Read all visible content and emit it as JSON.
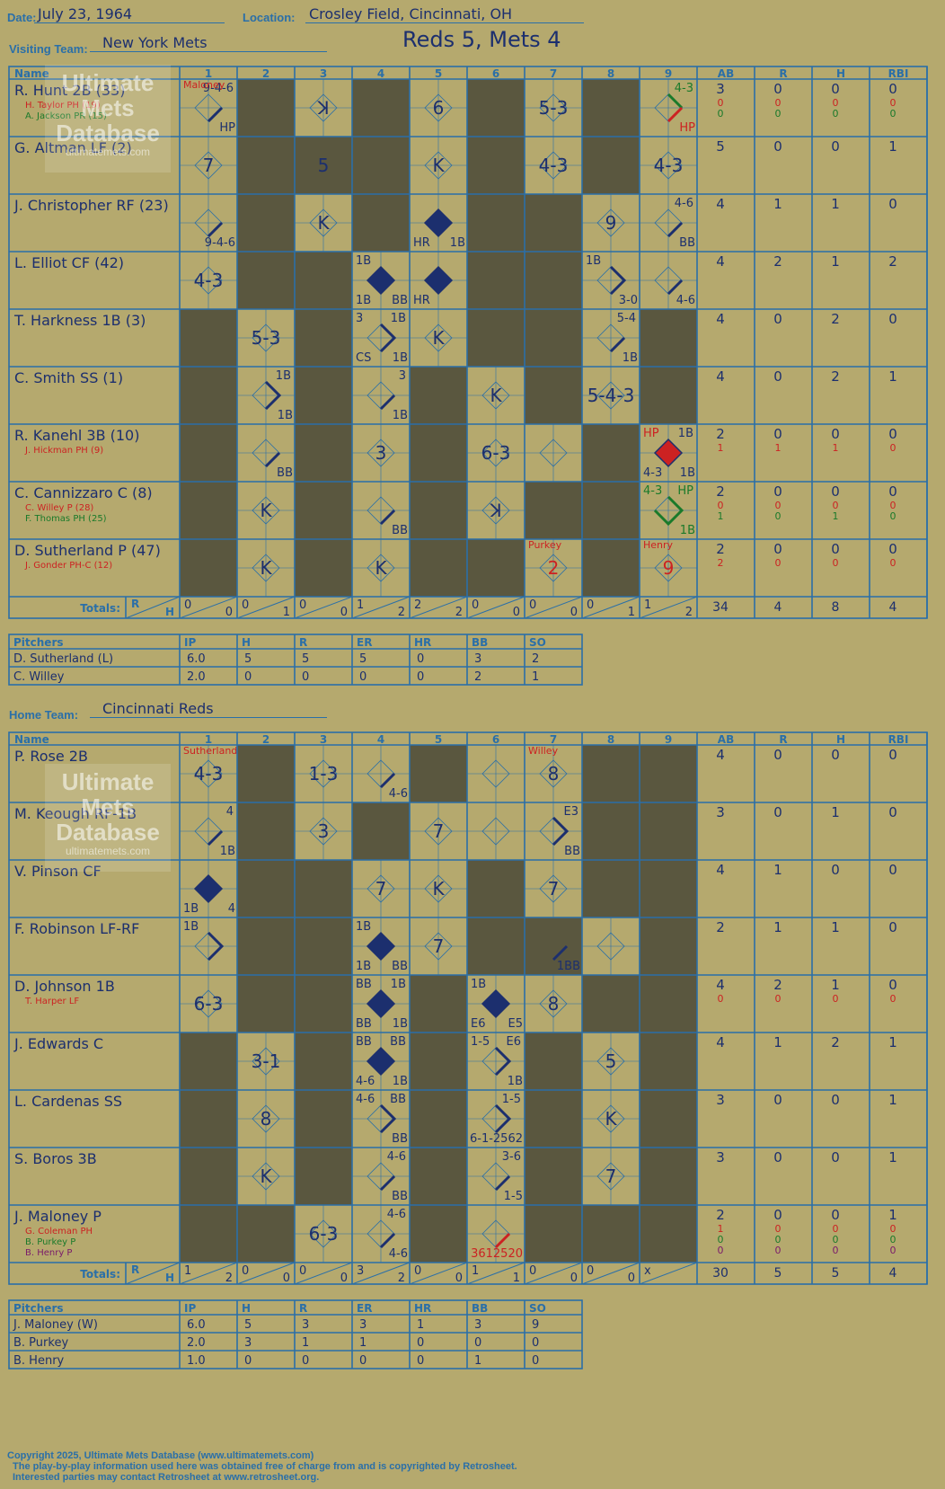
{
  "header": {
    "date_label": "Date:",
    "date": "July 23, 1964",
    "location_label": "Location:",
    "location": "Crosley Field, Cincinnati, OH",
    "final_score": "Reds 5, Mets 4"
  },
  "logo": {
    "line1": "Ultimate",
    "line2": "Mets",
    "line3": "Database",
    "line4": "ultimatemets.com"
  },
  "colors": {
    "background": "#b5a96e",
    "grid": "#2a6fa8",
    "ink": "#1c2f6e",
    "shade": "#5a573f",
    "red": "#cc2222",
    "green": "#1a7a2a",
    "purple": "#7a1a6a"
  },
  "columns": {
    "name": "Name",
    "innings": [
      "1",
      "2",
      "3",
      "4",
      "5",
      "6",
      "7",
      "8",
      "9"
    ],
    "stats": [
      "AB",
      "R",
      "H",
      "RBI"
    ]
  },
  "totals_label": "Totals:",
  "rh_labels": [
    "R",
    "H"
  ],
  "pitcher_columns": [
    "Pitchers",
    "IP",
    "H",
    "R",
    "ER",
    "HR",
    "BB",
    "SO"
  ],
  "visitor": {
    "team_label": "Visiting Team:",
    "team": "New York Mets",
    "batters": [
      {
        "name": "R. Hunt 2B (33)",
        "subs": [
          {
            "text": "H. Taylor PH (19)",
            "color": "red"
          },
          {
            "text": "A. Jackson PR (15)",
            "color": "green"
          }
        ],
        "stats": [
          "3",
          "0",
          "0",
          "0"
        ],
        "substats": [
          [
            "0",
            "0",
            "0",
            "0"
          ],
          [
            "0",
            "0",
            "0",
            "0"
          ]
        ],
        "subcolors": [
          "red",
          "green"
        ]
      },
      {
        "name": "G. Altman LF (2)",
        "subs": [],
        "stats": [
          "5",
          "0",
          "0",
          "1"
        ],
        "substats": [],
        "subcolors": []
      },
      {
        "name": "J. Christopher RF (23)",
        "subs": [],
        "stats": [
          "4",
          "1",
          "1",
          "0"
        ],
        "substats": [],
        "subcolors": []
      },
      {
        "name": "L. Elliot CF (42)",
        "subs": [],
        "stats": [
          "4",
          "2",
          "1",
          "2"
        ],
        "substats": [],
        "subcolors": []
      },
      {
        "name": "T. Harkness 1B (3)",
        "subs": [],
        "stats": [
          "4",
          "0",
          "2",
          "0"
        ],
        "substats": [],
        "subcolors": []
      },
      {
        "name": "C. Smith SS (1)",
        "subs": [],
        "stats": [
          "4",
          "0",
          "2",
          "1"
        ],
        "substats": [],
        "subcolors": []
      },
      {
        "name": "R. Kanehl 3B (10)",
        "subs": [
          {
            "text": "J. Hickman PH (9)",
            "color": "red"
          }
        ],
        "stats": [
          "2",
          "0",
          "0",
          "0"
        ],
        "substats": [
          [
            "1",
            "1",
            "1",
            "0"
          ]
        ],
        "subcolors": [
          "red"
        ]
      },
      {
        "name": "C. Cannizzaro C (8)",
        "subs": [
          {
            "text": "C. Willey P (28)",
            "color": "red"
          },
          {
            "text": "F. Thomas PH (25)",
            "color": "green"
          }
        ],
        "stats": [
          "2",
          "0",
          "0",
          "0"
        ],
        "substats": [
          [
            "0",
            "0",
            "0",
            "0"
          ],
          [
            "1",
            "0",
            "1",
            "0"
          ]
        ],
        "subcolors": [
          "red",
          "green"
        ]
      },
      {
        "name": "D. Sutherland P (47)",
        "subs": [
          {
            "text": "J. Gonder PH-C (12)",
            "color": "red"
          }
        ],
        "stats": [
          "2",
          "0",
          "0",
          "0"
        ],
        "substats": [
          [
            "2",
            "0",
            "0",
            "0"
          ]
        ],
        "subcolors": [
          "red"
        ]
      }
    ],
    "shaded": [
      [
        1,
        3,
        5,
        7
      ],
      [
        1,
        2,
        3,
        5,
        7
      ],
      [
        1,
        3,
        5,
        6
      ],
      [
        1,
        2,
        5,
        6
      ],
      [
        0,
        2,
        5,
        6,
        8
      ],
      [
        0,
        2,
        4,
        6,
        8
      ],
      [
        0,
        2,
        4,
        7
      ],
      [
        0,
        2,
        4,
        6,
        7
      ],
      [
        0,
        2,
        4,
        5,
        7
      ]
    ],
    "plays": [
      [
        {
          "i": 0,
          "t": "9-4-6",
          "p": "ur",
          "d": "1b-f",
          "b": "HP",
          "bp": "lr"
        },
        {
          "i": 2,
          "t": "ꓘ",
          "p": "c"
        },
        {
          "i": 4,
          "t": "6",
          "p": "c"
        },
        {
          "i": 6,
          "t": "5-3",
          "p": "c"
        },
        {
          "i": 8,
          "t": "4-3",
          "p": "ur",
          "c": "green",
          "d": "sc",
          "b": "HP",
          "bp": "lr",
          "bc": "red"
        }
      ],
      [
        {
          "i": 0,
          "t": "7",
          "p": "c"
        },
        {
          "i": 2,
          "t": "5",
          "p": "c"
        },
        {
          "i": 4,
          "t": "K",
          "p": "c"
        },
        {
          "i": 6,
          "t": "4-3",
          "p": "c"
        },
        {
          "i": 8,
          "t": "4-3",
          "p": "c"
        }
      ],
      [
        {
          "i": 0,
          "t": "9-4-6",
          "p": "lr",
          "d": "1b"
        },
        {
          "i": 2,
          "t": "K",
          "p": "c"
        },
        {
          "i": 4,
          "t": "HR",
          "p": "ll",
          "d": "run",
          "b": "1B",
          "bp": "lr"
        },
        {
          "i": 7,
          "t": "9",
          "p": "c"
        },
        {
          "i": 8,
          "t": "4-6",
          "p": "ur",
          "d": "1b",
          "b": "BB",
          "bp": "lr"
        }
      ],
      [
        {
          "i": 0,
          "t": "4-3",
          "p": "c"
        },
        {
          "i": 3,
          "t": "1B",
          "p": "ul",
          "d": "run",
          "b": "BB",
          "bp": "lr",
          "e": "1B",
          "ep": "ll"
        },
        {
          "i": 4,
          "t": "HR",
          "p": "ll",
          "d": "run"
        },
        {
          "i": 7,
          "t": "1B",
          "p": "ul",
          "d": "2b",
          "b": "3-0",
          "bp": "lr"
        },
        {
          "i": 8,
          "t": "4-6",
          "p": "lr",
          "d": "1b"
        }
      ],
      [
        {
          "i": 1,
          "t": "5-3",
          "p": "c"
        },
        {
          "i": 3,
          "t": "3",
          "p": "ul",
          "d": "2b",
          "b": "1B",
          "bp": "lr",
          "e": "CS",
          "ep": "ll",
          "f": "1B",
          "fp": "ur"
        },
        {
          "i": 4,
          "t": "K",
          "p": "c"
        },
        {
          "i": 7,
          "t": "5-4",
          "p": "ur",
          "d": "1b",
          "b": "1B",
          "bp": "lr"
        }
      ],
      [
        {
          "i": 1,
          "t": "1B",
          "p": "ur",
          "d": "2b",
          "b": "1B",
          "bp": "lr"
        },
        {
          "i": 3,
          "t": "3",
          "p": "ur",
          "d": "1b",
          "b": "1B",
          "bp": "lr"
        },
        {
          "i": 5,
          "t": "K",
          "p": "c"
        },
        {
          "i": 7,
          "t": "5-4-3",
          "p": "c"
        }
      ],
      [
        {
          "i": 1,
          "t": "BB",
          "p": "lr",
          "d": "1b"
        },
        {
          "i": 3,
          "t": "3",
          "p": "c"
        },
        {
          "i": 5,
          "t": "6-3",
          "p": "c"
        },
        {
          "i": 8,
          "t": "HP",
          "p": "ul",
          "c": "red",
          "d": "redrun",
          "b": "1B",
          "bp": "ur",
          "e": "4-3",
          "ep": "ll",
          "f": "1B",
          "fp": "lr"
        }
      ],
      [
        {
          "i": 1,
          "t": "K",
          "p": "c"
        },
        {
          "i": 3,
          "t": "BB",
          "p": "lr",
          "d": "1b"
        },
        {
          "i": 5,
          "t": "ꓘ",
          "p": "c"
        },
        {
          "i": 8,
          "t": "4-3",
          "p": "ul",
          "c": "green",
          "d": "greensc",
          "b": "HP",
          "bp": "ur",
          "bc": "green",
          "e": "1B",
          "ep": "lr",
          "ec": "green"
        }
      ],
      [
        {
          "i": 1,
          "t": "K",
          "p": "c"
        },
        {
          "i": 3,
          "t": "K",
          "p": "c"
        },
        {
          "i": 6,
          "t": "2",
          "p": "c",
          "c": "red",
          "note": "Purkey"
        },
        {
          "i": 8,
          "t": "9",
          "p": "c",
          "c": "red",
          "note": "Henry"
        }
      ]
    ],
    "pitcher_change_label": "Maloney",
    "totals": [
      [
        "0",
        "0"
      ],
      [
        "0",
        "1"
      ],
      [
        "0",
        "0"
      ],
      [
        "1",
        "2"
      ],
      [
        "2",
        "2"
      ],
      [
        "0",
        "0"
      ],
      [
        "0",
        "0"
      ],
      [
        "0",
        "1"
      ],
      [
        "1",
        "2"
      ]
    ],
    "stat_totals": [
      "34",
      "4",
      "8",
      "4"
    ],
    "pitchers": [
      {
        "name": "D. Sutherland (L)",
        "stats": [
          "6.0",
          "5",
          "5",
          "5",
          "0",
          "3",
          "2"
        ]
      },
      {
        "name": "C. Willey",
        "stats": [
          "2.0",
          "0",
          "0",
          "0",
          "0",
          "2",
          "1"
        ]
      }
    ]
  },
  "home": {
    "team_label": "Home Team:",
    "team": "Cincinnati Reds",
    "batters": [
      {
        "name": "P. Rose 2B",
        "subs": [],
        "stats": [
          "4",
          "0",
          "0",
          "0"
        ],
        "substats": [],
        "subcolors": []
      },
      {
        "name": "M. Keough RF-1B",
        "subs": [],
        "stats": [
          "3",
          "0",
          "1",
          "0"
        ],
        "substats": [],
        "subcolors": []
      },
      {
        "name": "V. Pinson CF",
        "subs": [],
        "stats": [
          "4",
          "1",
          "0",
          "0"
        ],
        "substats": [],
        "subcolors": []
      },
      {
        "name": "F. Robinson LF-RF",
        "subs": [],
        "stats": [
          "2",
          "1",
          "1",
          "0"
        ],
        "substats": [],
        "subcolors": []
      },
      {
        "name": "D. Johnson 1B",
        "subs": [
          {
            "text": "T. Harper LF",
            "color": "red"
          }
        ],
        "stats": [
          "4",
          "2",
          "1",
          "0"
        ],
        "substats": [
          [
            "0",
            "0",
            "0",
            "0"
          ]
        ],
        "subcolors": [
          "red"
        ]
      },
      {
        "name": "J. Edwards C",
        "subs": [],
        "stats": [
          "4",
          "1",
          "2",
          "1"
        ],
        "substats": [],
        "subcolors": []
      },
      {
        "name": "L. Cardenas SS",
        "subs": [],
        "stats": [
          "3",
          "0",
          "0",
          "1"
        ],
        "substats": [],
        "subcolors": []
      },
      {
        "name": "S. Boros 3B",
        "subs": [],
        "stats": [
          "3",
          "0",
          "0",
          "1"
        ],
        "substats": [],
        "subcolors": []
      },
      {
        "name": "J. Maloney P",
        "subs": [
          {
            "text": "G. Coleman PH",
            "color": "red"
          },
          {
            "text": "B. Purkey P",
            "color": "green"
          },
          {
            "text": "B. Henry P",
            "color": "purple"
          }
        ],
        "stats": [
          "2",
          "0",
          "0",
          "1"
        ],
        "substats": [
          [
            "1",
            "0",
            "0",
            "0"
          ],
          [
            "0",
            "0",
            "0",
            "0"
          ],
          [
            "0",
            "0",
            "0",
            "0"
          ]
        ],
        "subcolors": [
          "red",
          "green",
          "purple"
        ]
      }
    ],
    "shaded": [
      [
        1,
        4,
        7,
        8
      ],
      [
        1,
        3,
        7,
        8
      ],
      [
        1,
        2,
        5,
        7,
        8
      ],
      [
        1,
        2,
        5,
        6,
        8
      ],
      [
        1,
        2,
        4,
        7,
        8
      ],
      [
        0,
        2,
        4,
        6,
        8
      ],
      [
        0,
        2,
        4,
        6,
        8
      ],
      [
        0,
        2,
        4,
        6,
        8
      ],
      [
        0,
        1,
        4,
        6,
        7,
        8
      ]
    ],
    "plays": [
      [
        {
          "i": 0,
          "t": "4-3",
          "p": "c"
        },
        {
          "i": 2,
          "t": "1-3",
          "p": "c"
        },
        {
          "i": 3,
          "t": "4-6",
          "p": "lr",
          "d": "1b"
        },
        {
          "i": 6,
          "t": "8",
          "p": "c"
        }
      ],
      [
        {
          "i": 0,
          "t": "4",
          "p": "ur",
          "d": "1b",
          "b": "1B",
          "bp": "lr"
        },
        {
          "i": 2,
          "t": "3",
          "p": "c"
        },
        {
          "i": 4,
          "t": "7",
          "p": "c"
        },
        {
          "i": 6,
          "t": "E3",
          "p": "ur",
          "d": "2b",
          "b": "BB",
          "bp": "lr"
        }
      ],
      [
        {
          "i": 0,
          "t": "1B",
          "p": "ll",
          "d": "run",
          "b": "4",
          "bp": "lr"
        },
        {
          "i": 3,
          "t": "7",
          "p": "c"
        },
        {
          "i": 4,
          "t": "K",
          "p": "c"
        },
        {
          "i": 6,
          "t": "7",
          "p": "c"
        }
      ],
      [
        {
          "i": 0,
          "t": "1B",
          "p": "ul",
          "d": "2b"
        },
        {
          "i": 3,
          "t": "1B",
          "p": "ul",
          "d": "run",
          "b": "BB",
          "bp": "lr",
          "e": "1B",
          "ep": "ll"
        },
        {
          "i": 4,
          "t": "7",
          "p": "c"
        },
        {
          "i": 6,
          "t": "1BB",
          "p": "lr",
          "d": "1b"
        }
      ],
      [
        {
          "i": 0,
          "t": "6-3",
          "p": "c"
        },
        {
          "i": 3,
          "t": "BB",
          "p": "ul",
          "d": "run",
          "b": "1B",
          "bp": "lr",
          "e": "BB",
          "ep": "ll",
          "f": "1B",
          "fp": "ur"
        },
        {
          "i": 5,
          "t": "1B",
          "p": "ul",
          "d": "run",
          "b": "E5",
          "bp": "lr",
          "e": "E6",
          "ep": "ll"
        },
        {
          "i": 6,
          "t": "8",
          "p": "c"
        }
      ],
      [
        {
          "i": 1,
          "t": "3-1",
          "p": "c"
        },
        {
          "i": 3,
          "t": "BB",
          "p": "ul",
          "d": "run",
          "b": "1B",
          "bp": "lr",
          "e": "4-6",
          "ep": "ll",
          "f": "BB",
          "fp": "ur"
        },
        {
          "i": 5,
          "t": "1-5",
          "p": "ul",
          "d": "2b",
          "b": "1B",
          "bp": "lr",
          "e": "E6",
          "ep": "ur"
        },
        {
          "i": 7,
          "t": "5",
          "p": "c"
        }
      ],
      [
        {
          "i": 1,
          "t": "8",
          "p": "c"
        },
        {
          "i": 3,
          "t": "4-6",
          "p": "ul",
          "d": "2b",
          "b": "BB",
          "bp": "lr",
          "e": "BB",
          "ep": "ur"
        },
        {
          "i": 5,
          "t": "1-5",
          "p": "ur",
          "d": "2b",
          "b": "6-1-2562",
          "bp": "lr"
        },
        {
          "i": 7,
          "t": "K",
          "p": "c"
        }
      ],
      [
        {
          "i": 1,
          "t": "K",
          "p": "c"
        },
        {
          "i": 3,
          "t": "4-6",
          "p": "ur",
          "d": "1b",
          "b": "BB",
          "bp": "lr"
        },
        {
          "i": 5,
          "t": "3-6",
          "p": "ur",
          "d": "1b",
          "b": "1-5",
          "bp": "lr"
        },
        {
          "i": 7,
          "t": "7",
          "p": "c"
        }
      ],
      [
        {
          "i": 2,
          "t": "6-3",
          "p": "c"
        },
        {
          "i": 3,
          "t": "4-6",
          "p": "ur",
          "d": "1b",
          "b": "4-6",
          "bp": "lr"
        },
        {
          "i": 5,
          "t": "3612520",
          "p": "lr",
          "c": "red",
          "d": "red1b"
        }
      ]
    ],
    "pitcher_change_label": "Sutherland",
    "pitcher_change2_label": "Willey",
    "totals": [
      [
        "1",
        "2"
      ],
      [
        "0",
        "0"
      ],
      [
        "0",
        "0"
      ],
      [
        "3",
        "2"
      ],
      [
        "0",
        "0"
      ],
      [
        "1",
        "1"
      ],
      [
        "0",
        "0"
      ],
      [
        "0",
        "0"
      ],
      [
        "x",
        ""
      ]
    ],
    "stat_totals": [
      "30",
      "5",
      "5",
      "4"
    ],
    "pitchers": [
      {
        "name": "J. Maloney (W)",
        "stats": [
          "6.0",
          "5",
          "3",
          "3",
          "1",
          "3",
          "9"
        ]
      },
      {
        "name": "B. Purkey",
        "stats": [
          "2.0",
          "3",
          "1",
          "1",
          "0",
          "0",
          "0"
        ]
      },
      {
        "name": "B. Henry",
        "stats": [
          "1.0",
          "0",
          "0",
          "0",
          "0",
          "1",
          "0"
        ]
      }
    ]
  },
  "footer": {
    "line1": "Copyright 2025, Ultimate Mets Database (www.ultimatemets.com)",
    "line2": "The play-by-play information used here was obtained free of charge from and is copyrighted by Retrosheet.",
    "line3": "Interested parties may contact Retrosheet at www.retrosheet.org."
  }
}
